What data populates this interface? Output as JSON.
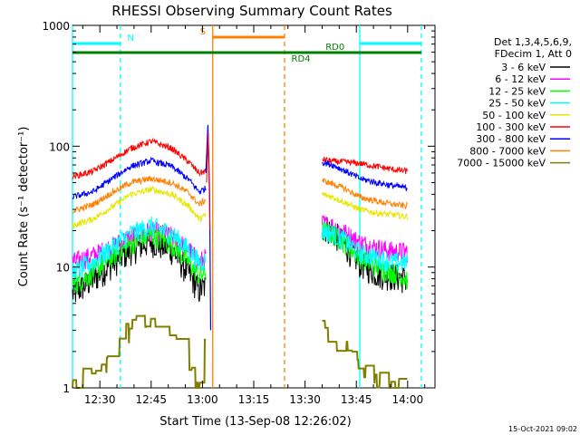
{
  "chart_data": {
    "type": "line",
    "title": "RHESSI Observing Summary Count Rates",
    "xlabel": "Start Time (13-Sep-08 12:26:02)",
    "ylabel": "Count Rate (s⁻¹ detector⁻¹)",
    "y_scale": "log",
    "ylim": [
      1,
      1000
    ],
    "y_ticks": [
      {
        "value": 1,
        "label": "1"
      },
      {
        "value": 10,
        "label": "10"
      },
      {
        "value": 100,
        "label": "100"
      },
      {
        "value": 1000,
        "label": "1000"
      }
    ],
    "x_range_min": [
      -4,
      102
    ],
    "x_ticks": [
      {
        "value": 4,
        "label": "12:30"
      },
      {
        "value": 19,
        "label": "12:45"
      },
      {
        "value": 34,
        "label": "13:00"
      },
      {
        "value": 49,
        "label": "13:15"
      },
      {
        "value": 64,
        "label": "13:30"
      },
      {
        "value": 79,
        "label": "13:45"
      },
      {
        "value": 94,
        "label": "14:00"
      }
    ],
    "legend": {
      "header": [
        "Det 1,3,4,5,6,9,",
        "FDecim 1, Att 0"
      ],
      "placement": "right"
    },
    "series": [
      {
        "name": "3 - 6 keV",
        "color": "#000000",
        "seg1": [
          [
            -4,
            6
          ],
          [
            2,
            8
          ],
          [
            8,
            11
          ],
          [
            13,
            14
          ],
          [
            19,
            16.5
          ],
          [
            25,
            14
          ],
          [
            30,
            9
          ],
          [
            33,
            6.5
          ],
          [
            35,
            7
          ]
        ],
        "seg2": [
          [
            69,
            22
          ],
          [
            72,
            20
          ],
          [
            76,
            15
          ],
          [
            80,
            11
          ],
          [
            85,
            9
          ],
          [
            90,
            8.5
          ],
          [
            94,
            8
          ]
        ]
      },
      {
        "name": "6 - 12 keV",
        "color": "#ff00ff",
        "seg1": [
          [
            -4,
            11
          ],
          [
            2,
            12.5
          ],
          [
            8,
            15
          ],
          [
            13,
            18
          ],
          [
            19,
            20
          ],
          [
            25,
            18
          ],
          [
            30,
            14
          ],
          [
            33,
            11
          ],
          [
            35,
            12
          ]
        ],
        "seg2": [
          [
            69,
            23
          ],
          [
            72,
            22
          ],
          [
            76,
            19
          ],
          [
            80,
            16
          ],
          [
            85,
            14.5
          ],
          [
            90,
            13.5
          ],
          [
            94,
            13.5
          ]
        ]
      },
      {
        "name": "12 - 25 keV",
        "color": "#00ff00",
        "seg1": [
          [
            -4,
            7
          ],
          [
            2,
            9
          ],
          [
            8,
            12.5
          ],
          [
            13,
            15.5
          ],
          [
            19,
            18.5
          ],
          [
            25,
            15.5
          ],
          [
            30,
            11
          ],
          [
            33,
            8.5
          ],
          [
            35,
            9
          ]
        ],
        "seg2": [
          [
            69,
            20
          ],
          [
            72,
            19
          ],
          [
            76,
            15.5
          ],
          [
            80,
            12
          ],
          [
            85,
            10
          ],
          [
            90,
            9
          ],
          [
            94,
            8
          ]
        ]
      },
      {
        "name": "25 - 50 keV",
        "color": "#00ffff",
        "seg1": [
          [
            -4,
            9
          ],
          [
            2,
            11
          ],
          [
            8,
            15
          ],
          [
            13,
            19
          ],
          [
            19,
            22
          ],
          [
            25,
            19
          ],
          [
            30,
            14
          ],
          [
            33,
            11
          ],
          [
            35,
            11.5
          ]
        ],
        "seg2": [
          [
            69,
            20
          ],
          [
            72,
            19
          ],
          [
            76,
            16.5
          ],
          [
            80,
            13
          ],
          [
            85,
            12
          ],
          [
            90,
            11
          ],
          [
            94,
            11
          ]
        ]
      },
      {
        "name": "50 - 100 keV",
        "color": "#e6e600",
        "seg1": [
          [
            -4,
            22
          ],
          [
            2,
            25
          ],
          [
            8,
            32
          ],
          [
            13,
            40
          ],
          [
            19,
            44
          ],
          [
            25,
            40
          ],
          [
            30,
            32
          ],
          [
            33,
            25
          ],
          [
            35,
            27
          ]
        ],
        "seg2": [
          [
            69,
            40
          ],
          [
            72,
            38
          ],
          [
            76,
            34
          ],
          [
            80,
            30
          ],
          [
            85,
            28
          ],
          [
            90,
            27
          ],
          [
            94,
            26
          ]
        ]
      },
      {
        "name": "100 - 300 keV",
        "color": "#ff0000",
        "seg1": [
          [
            -4,
            56
          ],
          [
            2,
            62
          ],
          [
            8,
            78
          ],
          [
            13,
            96
          ],
          [
            19,
            110
          ],
          [
            25,
            96
          ],
          [
            30,
            74
          ],
          [
            33,
            60
          ],
          [
            35,
            62
          ]
        ],
        "seg2": [
          [
            69,
            78
          ],
          [
            72,
            75
          ],
          [
            76,
            74
          ],
          [
            80,
            72
          ],
          [
            85,
            68
          ],
          [
            90,
            64
          ],
          [
            94,
            62
          ]
        ]
      },
      {
        "name": "300 - 800 keV",
        "color": "#0000ff",
        "seg1": [
          [
            -4,
            38
          ],
          [
            2,
            42
          ],
          [
            8,
            55
          ],
          [
            13,
            68
          ],
          [
            19,
            76
          ],
          [
            25,
            68
          ],
          [
            30,
            53
          ],
          [
            33,
            42
          ],
          [
            35,
            45
          ]
        ],
        "seg2": [
          [
            69,
            74
          ],
          [
            72,
            70
          ],
          [
            76,
            62
          ],
          [
            80,
            54
          ],
          [
            85,
            50
          ],
          [
            90,
            47
          ],
          [
            94,
            45
          ]
        ]
      },
      {
        "name": "800 - 7000 keV",
        "color": "#ff8000",
        "seg1": [
          [
            -4,
            29
          ],
          [
            2,
            33
          ],
          [
            8,
            42
          ],
          [
            13,
            50
          ],
          [
            19,
            54
          ],
          [
            25,
            50
          ],
          [
            30,
            41
          ],
          [
            33,
            33
          ],
          [
            35,
            36
          ]
        ],
        "seg2": [
          [
            69,
            52
          ],
          [
            72,
            49
          ],
          [
            76,
            44
          ],
          [
            80,
            38
          ],
          [
            85,
            35
          ],
          [
            90,
            33
          ],
          [
            94,
            32
          ]
        ]
      },
      {
        "name": "7000 - 15000 keV",
        "color": "#808000",
        "seg1": [
          [
            -4,
            1
          ],
          [
            6,
            1.6
          ],
          [
            9,
            2.6
          ],
          [
            14,
            3.2
          ],
          [
            19,
            3.7
          ],
          [
            24,
            3.2
          ],
          [
            27,
            2.2
          ],
          [
            30,
            1.4
          ],
          [
            33,
            1
          ],
          [
            35,
            2.3
          ]
        ],
        "seg2": [
          [
            69,
            3.5
          ],
          [
            72,
            2.8
          ],
          [
            76,
            2
          ],
          [
            80,
            1.4
          ],
          [
            85,
            1.1
          ],
          [
            90,
            1
          ],
          [
            94,
            1
          ]
        ]
      }
    ],
    "flags": [
      {
        "label": "N",
        "color": "#00ffff",
        "y_level": 0,
        "segments": [
          [
            -4,
            10
          ],
          [
            80,
            98
          ]
        ]
      },
      {
        "label": "S",
        "color": "#ff8000",
        "y_level": 1,
        "segments": [
          [
            37,
            58
          ]
        ]
      },
      {
        "label": "RD0",
        "color": "#008000",
        "y_level": 2,
        "segments": [
          [
            -4,
            80
          ],
          [
            80,
            98
          ]
        ]
      },
      {
        "label": "RD4",
        "color": "#008000",
        "y_level": 3,
        "segments": [
          [
            58,
            80
          ]
        ]
      }
    ],
    "flag_label_positions": {
      "N": {
        "x": 12,
        "level": 0
      },
      "S": {
        "x": 35,
        "level": 1,
        "anchor": "end"
      },
      "RD0": {
        "x": 70,
        "level": 2
      },
      "RD4": {
        "x": 60,
        "level": 3
      }
    },
    "vlines": [
      {
        "x": -4,
        "color": "#00ffff",
        "dash": "solid"
      },
      {
        "x": 10,
        "color": "#00ffff",
        "dash": "dashed"
      },
      {
        "x": 37,
        "color": "#ff8000",
        "dash": "solid"
      },
      {
        "x": 58,
        "color": "#ff8000",
        "dash": "dashed"
      },
      {
        "x": 80,
        "color": "#00ffff",
        "dash": "solid"
      },
      {
        "x": 98,
        "color": "#00ffff",
        "dash": "dashed"
      }
    ]
  },
  "timestamp": "15-Oct-2021 09:02"
}
